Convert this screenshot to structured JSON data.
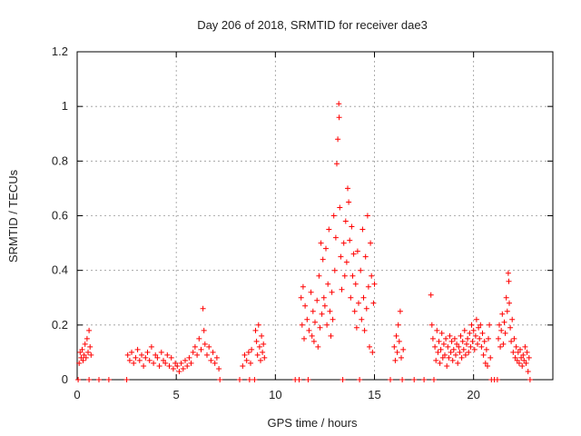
{
  "chart_data": {
    "type": "scatter",
    "title": "Day 206 of 2018, SRMTID for receiver dae3",
    "xlabel": "GPS time / hours",
    "ylabel": "SRMTID / TECUs",
    "xlim": [
      0,
      24
    ],
    "ylim": [
      0,
      1.2
    ],
    "xticks": [
      0,
      5,
      10,
      15,
      20
    ],
    "xtick_labels": [
      "0",
      "5",
      "10",
      "15",
      "20"
    ],
    "yticks": [
      0,
      0.2,
      0.4,
      0.6,
      0.8,
      1,
      1.2
    ],
    "ytick_labels": [
      "0",
      "0.2",
      "0.4",
      "0.6",
      "0.8",
      "1",
      "1.2"
    ],
    "grid": true,
    "marker": "+",
    "color": "#ff0000",
    "series": [
      {
        "name": "dae3",
        "points": [
          [
            0.1,
            0.06
          ],
          [
            0.15,
            0.1
          ],
          [
            0.2,
            0.08
          ],
          [
            0.25,
            0.11
          ],
          [
            0.3,
            0.07
          ],
          [
            0.35,
            0.09
          ],
          [
            0.4,
            0.13
          ],
          [
            0.45,
            0.08
          ],
          [
            0.5,
            0.15
          ],
          [
            0.55,
            0.1
          ],
          [
            0.6,
            0.18
          ],
          [
            0.65,
            0.12
          ],
          [
            0.7,
            0.09
          ],
          [
            0.05,
            0.0
          ],
          [
            0.6,
            0.0
          ],
          [
            1.1,
            0.0
          ],
          [
            1.6,
            0.0
          ],
          [
            2.5,
            0.0
          ],
          [
            2.55,
            0.09
          ],
          [
            2.65,
            0.07
          ],
          [
            2.75,
            0.1
          ],
          [
            2.85,
            0.06
          ],
          [
            2.95,
            0.08
          ],
          [
            3.05,
            0.11
          ],
          [
            3.15,
            0.07
          ],
          [
            3.25,
            0.09
          ],
          [
            3.35,
            0.05
          ],
          [
            3.45,
            0.08
          ],
          [
            3.55,
            0.1
          ],
          [
            3.65,
            0.07
          ],
          [
            3.75,
            0.12
          ],
          [
            3.85,
            0.06
          ],
          [
            3.95,
            0.09
          ],
          [
            4.05,
            0.08
          ],
          [
            4.15,
            0.05
          ],
          [
            4.25,
            0.1
          ],
          [
            4.35,
            0.07
          ],
          [
            4.45,
            0.06
          ],
          [
            4.55,
            0.09
          ],
          [
            4.65,
            0.05
          ],
          [
            4.75,
            0.08
          ],
          [
            4.85,
            0.04
          ],
          [
            4.95,
            0.06
          ],
          [
            5.05,
            0.05
          ],
          [
            5.15,
            0.03
          ],
          [
            5.25,
            0.06
          ],
          [
            5.35,
            0.04
          ],
          [
            5.45,
            0.07
          ],
          [
            5.55,
            0.05
          ],
          [
            5.65,
            0.08
          ],
          [
            5.75,
            0.06
          ],
          [
            5.85,
            0.1
          ],
          [
            5.95,
            0.12
          ],
          [
            6.05,
            0.09
          ],
          [
            6.15,
            0.15
          ],
          [
            6.25,
            0.11
          ],
          [
            6.35,
            0.26
          ],
          [
            6.4,
            0.18
          ],
          [
            6.45,
            0.13
          ],
          [
            6.55,
            0.09
          ],
          [
            6.65,
            0.12
          ],
          [
            6.75,
            0.07
          ],
          [
            6.85,
            0.1
          ],
          [
            6.95,
            0.06
          ],
          [
            7.05,
            0.08
          ],
          [
            7.15,
            0.04
          ],
          [
            7.2,
            0.0
          ],
          [
            8.2,
            0.0
          ],
          [
            8.35,
            0.05
          ],
          [
            8.45,
            0.09
          ],
          [
            8.55,
            0.07
          ],
          [
            8.65,
            0.1
          ],
          [
            8.7,
            0.0
          ],
          [
            8.75,
            0.06
          ],
          [
            8.8,
            0.11
          ],
          [
            8.95,
            0.0
          ],
          [
            9.0,
            0.18
          ],
          [
            9.05,
            0.14
          ],
          [
            9.1,
            0.09
          ],
          [
            9.15,
            0.2
          ],
          [
            9.2,
            0.12
          ],
          [
            9.25,
            0.07
          ],
          [
            9.3,
            0.16
          ],
          [
            9.35,
            0.1
          ],
          [
            9.4,
            0.13
          ],
          [
            9.45,
            0.08
          ],
          [
            11.0,
            0.0
          ],
          [
            11.2,
            0.0
          ],
          [
            11.3,
            0.3
          ],
          [
            11.35,
            0.2
          ],
          [
            11.4,
            0.34
          ],
          [
            11.45,
            0.15
          ],
          [
            11.5,
            0.27
          ],
          [
            11.6,
            0.22
          ],
          [
            11.65,
            0.0
          ],
          [
            11.7,
            0.18
          ],
          [
            11.8,
            0.32
          ],
          [
            11.85,
            0.16
          ],
          [
            11.9,
            0.25
          ],
          [
            11.95,
            0.14
          ],
          [
            12.0,
            0.21
          ],
          [
            12.1,
            0.29
          ],
          [
            12.15,
            0.12
          ],
          [
            12.2,
            0.38
          ],
          [
            12.25,
            0.19
          ],
          [
            12.3,
            0.5
          ],
          [
            12.35,
            0.24
          ],
          [
            12.4,
            0.44
          ],
          [
            12.45,
            0.3
          ],
          [
            12.5,
            0.27
          ],
          [
            12.55,
            0.48
          ],
          [
            12.6,
            0.2
          ],
          [
            12.65,
            0.35
          ],
          [
            12.7,
            0.55
          ],
          [
            12.75,
            0.25
          ],
          [
            12.8,
            0.16
          ],
          [
            12.85,
            0.32
          ],
          [
            12.9,
            0.22
          ],
          [
            12.95,
            0.6
          ],
          [
            13.0,
            0.4
          ],
          [
            13.05,
            0.52
          ],
          [
            13.1,
            0.79
          ],
          [
            13.15,
            0.88
          ],
          [
            13.2,
            1.01
          ],
          [
            13.22,
            0.96
          ],
          [
            13.25,
            0.63
          ],
          [
            13.3,
            0.45
          ],
          [
            13.35,
            0.33
          ],
          [
            13.4,
            0.0
          ],
          [
            13.45,
            0.5
          ],
          [
            13.5,
            0.38
          ],
          [
            13.55,
            0.58
          ],
          [
            13.6,
            0.43
          ],
          [
            13.65,
            0.7
          ],
          [
            13.7,
            0.65
          ],
          [
            13.75,
            0.51
          ],
          [
            13.8,
            0.3
          ],
          [
            13.85,
            0.56
          ],
          [
            13.9,
            0.38
          ],
          [
            13.95,
            0.46
          ],
          [
            14.0,
            0.25
          ],
          [
            14.05,
            0.35
          ],
          [
            14.1,
            0.19
          ],
          [
            14.15,
            0.47
          ],
          [
            14.2,
            0.28
          ],
          [
            14.25,
            0.0
          ],
          [
            14.3,
            0.4
          ],
          [
            14.35,
            0.22
          ],
          [
            14.4,
            0.55
          ],
          [
            14.45,
            0.3
          ],
          [
            14.5,
            0.18
          ],
          [
            14.55,
            0.45
          ],
          [
            14.6,
            0.26
          ],
          [
            14.65,
            0.6
          ],
          [
            14.7,
            0.34
          ],
          [
            14.75,
            0.12
          ],
          [
            14.8,
            0.5
          ],
          [
            14.85,
            0.38
          ],
          [
            14.9,
            0.1
          ],
          [
            14.95,
            0.28
          ],
          [
            15.0,
            0.35
          ],
          [
            15.8,
            0.0
          ],
          [
            16.0,
            0.12
          ],
          [
            16.05,
            0.07
          ],
          [
            16.1,
            0.16
          ],
          [
            16.15,
            0.1
          ],
          [
            16.2,
            0.2
          ],
          [
            16.25,
            0.14
          ],
          [
            16.3,
            0.25
          ],
          [
            16.35,
            0.08
          ],
          [
            16.4,
            0.0
          ],
          [
            16.45,
            0.11
          ],
          [
            17.0,
            0.0
          ],
          [
            17.5,
            0.0
          ],
          [
            17.85,
            0.31
          ],
          [
            17.9,
            0.2
          ],
          [
            17.95,
            0.15
          ],
          [
            18.0,
            0.0
          ],
          [
            18.05,
            0.12
          ],
          [
            18.1,
            0.07
          ],
          [
            18.15,
            0.18
          ],
          [
            18.2,
            0.1
          ],
          [
            18.25,
            0.14
          ],
          [
            18.3,
            0.06
          ],
          [
            18.35,
            0.11
          ],
          [
            18.4,
            0.17
          ],
          [
            18.45,
            0.08
          ],
          [
            18.5,
            0.13
          ],
          [
            18.55,
            0.09
          ],
          [
            18.6,
            0.15
          ],
          [
            18.65,
            0.05
          ],
          [
            18.7,
            0.12
          ],
          [
            18.75,
            0.08
          ],
          [
            18.8,
            0.16
          ],
          [
            18.85,
            0.1
          ],
          [
            18.9,
            0.14
          ],
          [
            18.95,
            0.07
          ],
          [
            19.0,
            0.11
          ],
          [
            19.05,
            0.15
          ],
          [
            19.1,
            0.09
          ],
          [
            19.15,
            0.13
          ],
          [
            19.2,
            0.06
          ],
          [
            19.25,
            0.12
          ],
          [
            19.3,
            0.1
          ],
          [
            19.35,
            0.16
          ],
          [
            19.4,
            0.08
          ],
          [
            19.45,
            0.14
          ],
          [
            19.5,
            0.11
          ],
          [
            19.55,
            0.18
          ],
          [
            19.6,
            0.09
          ],
          [
            19.65,
            0.13
          ],
          [
            19.7,
            0.15
          ],
          [
            19.75,
            0.1
          ],
          [
            19.8,
            0.17
          ],
          [
            19.85,
            0.12
          ],
          [
            19.9,
            0.2
          ],
          [
            19.95,
            0.14
          ],
          [
            20.0,
            0.18
          ],
          [
            20.05,
            0.11
          ],
          [
            20.1,
            0.16
          ],
          [
            20.15,
            0.22
          ],
          [
            20.2,
            0.13
          ],
          [
            20.25,
            0.19
          ],
          [
            20.3,
            0.15
          ],
          [
            20.35,
            0.2
          ],
          [
            20.4,
            0.12
          ],
          [
            20.45,
            0.17
          ],
          [
            20.5,
            0.09
          ],
          [
            20.55,
            0.14
          ],
          [
            20.6,
            0.06
          ],
          [
            20.65,
            0.11
          ],
          [
            20.7,
            0.05
          ],
          [
            20.75,
            0.15
          ],
          [
            20.8,
            0.2
          ],
          [
            20.85,
            0.08
          ],
          [
            20.9,
            0.0
          ],
          [
            21.05,
            0.0
          ],
          [
            21.2,
            0.0
          ],
          [
            21.25,
            0.15
          ],
          [
            21.3,
            0.2
          ],
          [
            21.35,
            0.12
          ],
          [
            21.4,
            0.18
          ],
          [
            21.45,
            0.24
          ],
          [
            21.5,
            0.13
          ],
          [
            21.55,
            0.21
          ],
          [
            21.6,
            0.17
          ],
          [
            21.65,
            0.3
          ],
          [
            21.7,
            0.25
          ],
          [
            21.75,
            0.39
          ],
          [
            21.78,
            0.36
          ],
          [
            21.8,
            0.28
          ],
          [
            21.85,
            0.19
          ],
          [
            21.9,
            0.14
          ],
          [
            21.95,
            0.22
          ],
          [
            22.0,
            0.1
          ],
          [
            22.05,
            0.15
          ],
          [
            22.1,
            0.08
          ],
          [
            22.15,
            0.12
          ],
          [
            22.2,
            0.07
          ],
          [
            22.25,
            0.1
          ],
          [
            22.3,
            0.06
          ],
          [
            22.35,
            0.11
          ],
          [
            22.4,
            0.08
          ],
          [
            22.45,
            0.05
          ],
          [
            22.5,
            0.09
          ],
          [
            22.55,
            0.07
          ],
          [
            22.6,
            0.12
          ],
          [
            22.65,
            0.06
          ],
          [
            22.7,
            0.1
          ],
          [
            22.75,
            0.03
          ],
          [
            22.8,
            0.08
          ],
          [
            22.85,
            0.0
          ]
        ]
      }
    ]
  }
}
